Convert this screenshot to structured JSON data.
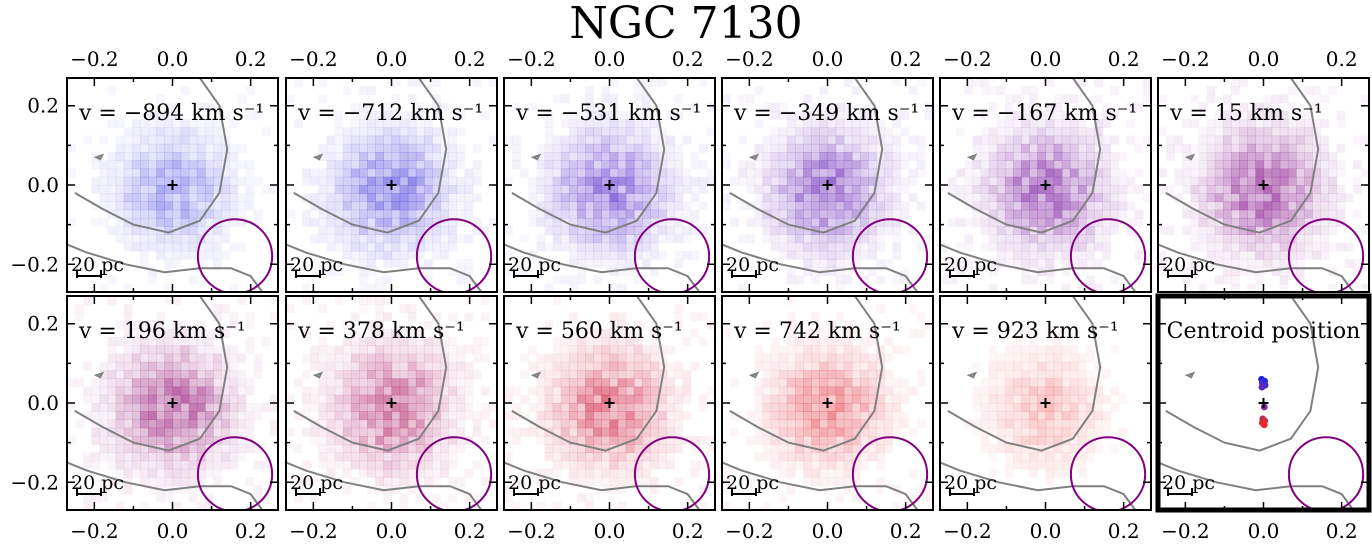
{
  "chart_data": {
    "type": "heatmap",
    "title": "NGC 7130",
    "xlim": [
      -0.27,
      0.27
    ],
    "ylim": [
      -0.27,
      0.27
    ],
    "x_ticks": [
      -0.2,
      0.0,
      0.2
    ],
    "y_ticks": [
      -0.2,
      0.0,
      0.2
    ],
    "x_tick_labels": [
      "−0.2",
      "0.0",
      "0.2"
    ],
    "y_tick_labels": [
      "−0.2",
      "0.0",
      "0.2"
    ],
    "scale_bar_label": "20 pc",
    "beam_circle": {
      "center": [
        0.16,
        -0.18
      ],
      "radius": 0.095,
      "color": "#800080"
    },
    "center_marker": "+",
    "panels": [
      {
        "velocity": -894,
        "label": "v = −894 km s⁻¹",
        "color": "#6464e6",
        "peak_alpha": 0.45
      },
      {
        "velocity": -712,
        "label": "v = −712 km s⁻¹",
        "color": "#6a5ee0",
        "peak_alpha": 0.6
      },
      {
        "velocity": -531,
        "label": "v = −531 km s⁻¹",
        "color": "#7a5ad6",
        "peak_alpha": 0.65
      },
      {
        "velocity": -349,
        "label": "v = −349 km s⁻¹",
        "color": "#8a55c6",
        "peak_alpha": 0.68
      },
      {
        "velocity": -167,
        "label": "v = −167 km s⁻¹",
        "color": "#9a50b6",
        "peak_alpha": 0.72
      },
      {
        "velocity": 15,
        "label": "v = 15 km s⁻¹",
        "color": "#a44ea8",
        "peak_alpha": 0.75
      },
      {
        "velocity": 196,
        "label": "v = 196 km s⁻¹",
        "color": "#b0509a",
        "peak_alpha": 0.72
      },
      {
        "velocity": 378,
        "label": "v = 378 km s⁻¹",
        "color": "#c04f86",
        "peak_alpha": 0.68
      },
      {
        "velocity": 560,
        "label": "v = 560 km s⁻¹",
        "color": "#d84c66",
        "peak_alpha": 0.62
      },
      {
        "velocity": 742,
        "label": "v = 742 km s⁻¹",
        "color": "#e4505a",
        "peak_alpha": 0.5
      },
      {
        "velocity": 923,
        "label": "v = 923 km s⁻¹",
        "color": "#ec5a5a",
        "peak_alpha": 0.3
      }
    ],
    "centroid_panel": {
      "label": "Centroid position",
      "points": [
        {
          "x": -0.005,
          "y": 0.06,
          "color": "#2020e0"
        },
        {
          "x": 0.003,
          "y": 0.055,
          "color": "#2828e0"
        },
        {
          "x": -0.003,
          "y": 0.05,
          "color": "#3a2ad8"
        },
        {
          "x": 0.004,
          "y": 0.045,
          "color": "#4a2ad0"
        },
        {
          "x": -0.004,
          "y": 0.04,
          "color": "#5a2ac0"
        },
        {
          "x": 0.002,
          "y": -0.01,
          "color": "#7a2aa0"
        },
        {
          "x": -0.002,
          "y": -0.04,
          "color": "#b02a60"
        },
        {
          "x": 0.003,
          "y": -0.045,
          "color": "#d02a40"
        },
        {
          "x": -0.003,
          "y": -0.05,
          "color": "#e02a30"
        },
        {
          "x": 0.002,
          "y": -0.055,
          "color": "#e82828"
        }
      ]
    }
  }
}
